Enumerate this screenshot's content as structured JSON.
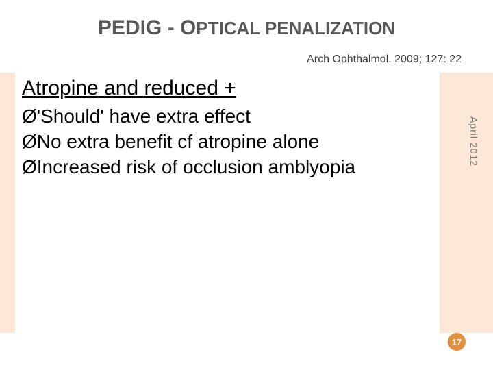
{
  "title_prefix": "PEDIG - ",
  "title_main_first": "O",
  "title_main_rest": "PTICAL PENALIZATION",
  "citation": "Arch Ophthalmol. 2009; 127: 22",
  "content_heading": "Atropine and reduced +",
  "bullet_marker": "Ø",
  "bullets": [
    "'Should' have extra effect",
    "No extra benefit cf atropine alone",
    "Increased risk of occlusion amblyopia"
  ],
  "side_text": "April 2012",
  "page_number": "17",
  "colors": {
    "band": "#fde8d8",
    "page_circle": "#e08f3e",
    "title_color": "#595959"
  }
}
